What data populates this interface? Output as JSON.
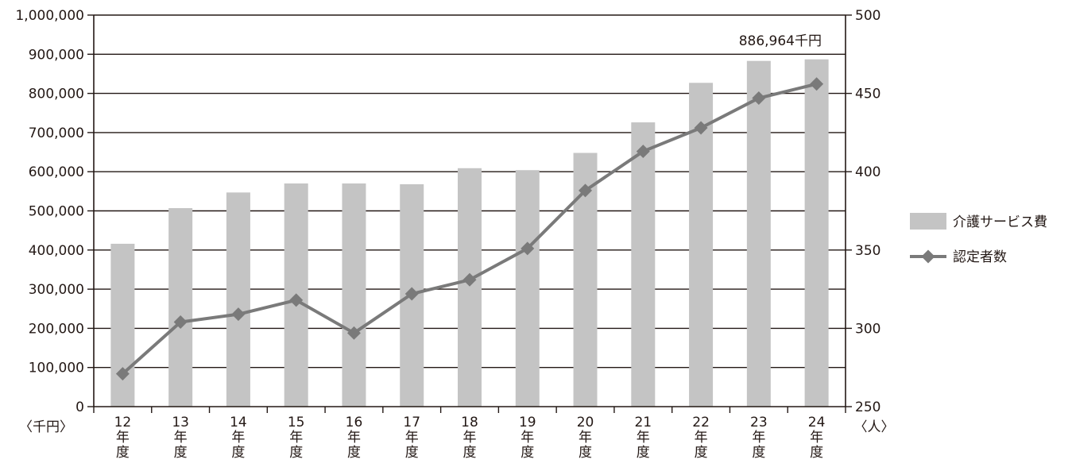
{
  "chart_data": {
    "type": "bar+line",
    "categories": [
      [
        "12",
        "年",
        "度"
      ],
      [
        "13",
        "年",
        "度"
      ],
      [
        "14",
        "年",
        "度"
      ],
      [
        "15",
        "年",
        "度"
      ],
      [
        "16",
        "年",
        "度"
      ],
      [
        "17",
        "年",
        "度"
      ],
      [
        "18",
        "年",
        "度"
      ],
      [
        "19",
        "年",
        "度"
      ],
      [
        "20",
        "年",
        "度"
      ],
      [
        "21",
        "年",
        "度"
      ],
      [
        "22",
        "年",
        "度"
      ],
      [
        "23",
        "年",
        "度"
      ],
      [
        "24",
        "年",
        "度"
      ]
    ],
    "series": [
      {
        "name": "介護サービス費",
        "kind": "bar",
        "axis": "left",
        "color": "#c4c4c4",
        "values": [
          416000,
          507000,
          547000,
          570000,
          570000,
          568000,
          609000,
          604000,
          648000,
          726000,
          827000,
          883000,
          886964
        ]
      },
      {
        "name": "認定者数",
        "kind": "line",
        "axis": "right",
        "color": "#7a7a7a",
        "values": [
          271,
          304,
          309,
          318,
          297,
          322,
          331,
          351,
          388,
          413,
          428,
          447,
          456
        ]
      }
    ],
    "left_axis": {
      "unit_label": "〈千円〉",
      "ylim": [
        0,
        1000000
      ],
      "ticks": [
        "0",
        "100,000",
        "200,000",
        "300,000",
        "400,000",
        "500,000",
        "600,000",
        "700,000",
        "800,000",
        "900,000",
        "1,000,000"
      ]
    },
    "right_axis": {
      "unit_label": "〈人〉",
      "ylim": [
        250,
        500
      ],
      "ticks": [
        "250",
        "300",
        "350",
        "400",
        "450",
        "500"
      ]
    },
    "annotation": {
      "text": "886,964千円",
      "category_index": 12
    },
    "grid": true,
    "legend_position": "right"
  }
}
